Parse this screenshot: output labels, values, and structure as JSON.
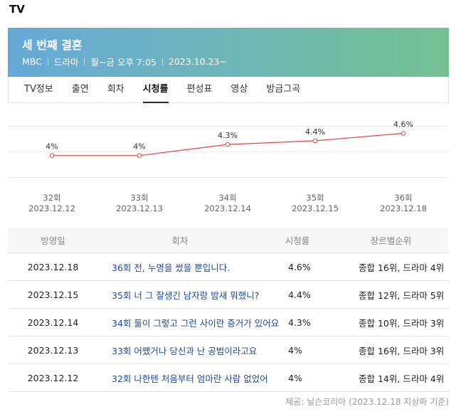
{
  "section_title": "TV",
  "program": {
    "title": "세 번째 결혼",
    "meta": [
      "MBC",
      "드라마",
      "월~금 오후 7:05",
      "2023.10.23~"
    ],
    "accent_from": "#66a9d9",
    "accent_to": "#74c092"
  },
  "tabs": [
    {
      "label": "TV정보",
      "active": false
    },
    {
      "label": "출연",
      "active": false
    },
    {
      "label": "회차",
      "active": false
    },
    {
      "label": "시청률",
      "active": true
    },
    {
      "label": "편성표",
      "active": false
    },
    {
      "label": "영상",
      "active": false
    },
    {
      "label": "방금그곡",
      "active": false
    }
  ],
  "chart_data": {
    "type": "line",
    "x": [
      "32회",
      "33회",
      "34회",
      "35회",
      "36회"
    ],
    "dates": [
      "2023.12.12",
      "2023.12.13",
      "2023.12.14",
      "2023.12.15",
      "2023.12.18"
    ],
    "values": [
      4.0,
      4.0,
      4.3,
      4.4,
      4.6
    ],
    "value_labels": [
      "4%",
      "4%",
      "4.3%",
      "4.4%",
      "4.6%"
    ],
    "ylim": [
      3.4,
      4.8
    ],
    "grid": true,
    "line_color": "#e04545"
  },
  "table": {
    "headers": [
      "방영일",
      "회차",
      "시청률",
      "장르별순위"
    ],
    "rows": [
      {
        "date": "2023.12.18",
        "episode": "36회 전, 누명을 썼을 뿐입니다.",
        "rating": "4.6%",
        "rank": "종합 16위, 드라마 4위"
      },
      {
        "date": "2023.12.15",
        "episode": "35회 너 그 잘생긴 남자랑 밤새 뭐했니?",
        "rating": "4.4%",
        "rank": "종합 12위, 드라마 5위"
      },
      {
        "date": "2023.12.14",
        "episode": "34회 둘이 그렇고 그런 사이란 증거가 있어요",
        "rating": "4.3%",
        "rank": "종합 10위, 드라마 3위"
      },
      {
        "date": "2023.12.13",
        "episode": "33회 어쨌거나 당신과 난 공범이라고요",
        "rating": "4%",
        "rank": "종합 16위, 드라마 3위"
      },
      {
        "date": "2023.12.12",
        "episode": "32회 나한텐 처음부터 엄마란 사람 없었어",
        "rating": "4%",
        "rank": "종합 14위, 드라마 4위"
      }
    ]
  },
  "source_note": "제공: 닐슨코리아 (2023.12.18 지상파 기준)"
}
